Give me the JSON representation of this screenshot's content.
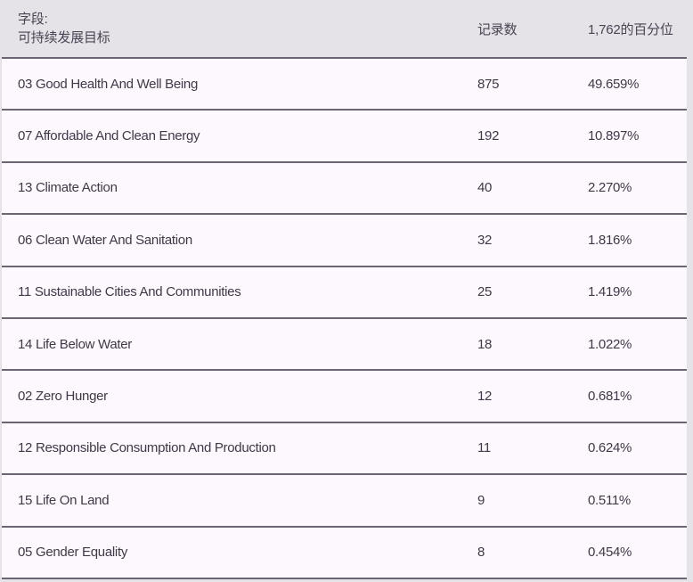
{
  "colors": {
    "page_background": "#e5e2e8",
    "row_background": "#fdf8fe",
    "separator_line": "#6b6472",
    "row_text": "#3f3947",
    "header_text": "#4b4553"
  },
  "table": {
    "header": {
      "field_label_line1": "字段:",
      "field_label_line2": "可持续发展目标",
      "records_label": "记录数",
      "percentile_label": "1,762的百分位"
    },
    "rows": [
      {
        "label": "03 Good Health And Well Being",
        "records": "875",
        "percent": "49.659%"
      },
      {
        "label": "07 Affordable And Clean Energy",
        "records": "192",
        "percent": "10.897%"
      },
      {
        "label": "13 Climate Action",
        "records": "40",
        "percent": "2.270%"
      },
      {
        "label": "06 Clean Water And Sanitation",
        "records": "32",
        "percent": "1.816%"
      },
      {
        "label": "11 Sustainable Cities And Communities",
        "records": "25",
        "percent": "1.419%"
      },
      {
        "label": "14 Life Below Water",
        "records": "18",
        "percent": "1.022%"
      },
      {
        "label": "02 Zero Hunger",
        "records": "12",
        "percent": "0.681%"
      },
      {
        "label": "12 Responsible Consumption And Production",
        "records": "11",
        "percent": "0.624%"
      },
      {
        "label": "15 Life On Land",
        "records": "9",
        "percent": "0.511%"
      },
      {
        "label": "05 Gender Equality",
        "records": "8",
        "percent": "0.454%"
      }
    ]
  }
}
